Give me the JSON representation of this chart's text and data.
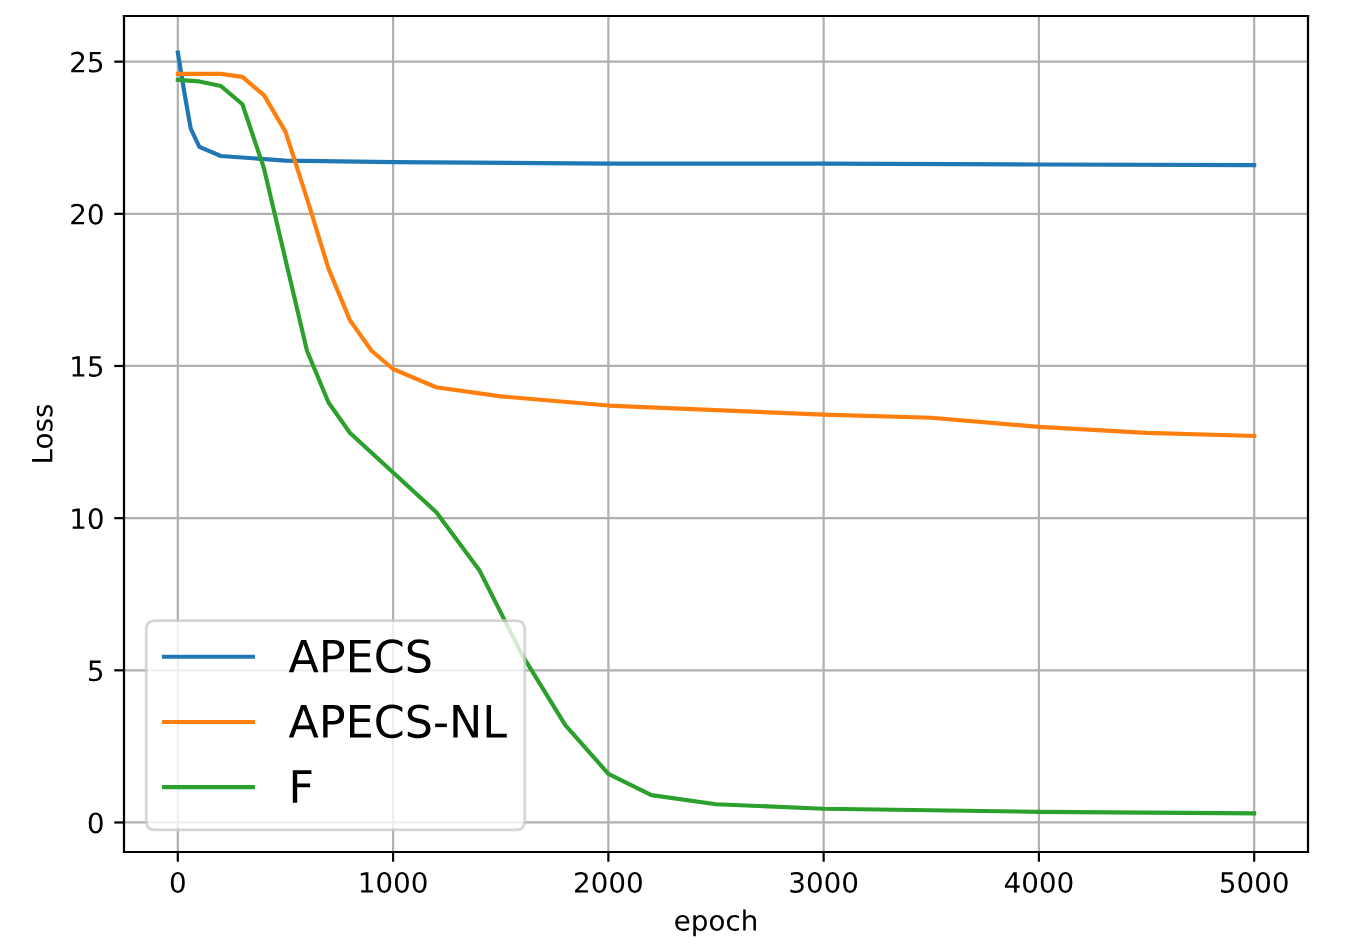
{
  "chart_data": {
    "type": "line",
    "xlabel": "epoch",
    "ylabel": "Loss",
    "xlim": [
      -250,
      5250
    ],
    "ylim": [
      -0.97,
      26.5
    ],
    "xticks": [
      0,
      1000,
      2000,
      3000,
      4000,
      5000
    ],
    "yticks": [
      0,
      5,
      10,
      15,
      20,
      25
    ],
    "grid": true,
    "legend": "bottom left",
    "series": [
      {
        "name": "APECS",
        "color": "#1f77b4",
        "x": [
          0,
          30,
          60,
          100,
          200,
          500,
          1000,
          2000,
          3000,
          4000,
          5000
        ],
        "values": [
          25.3,
          24.0,
          22.8,
          22.2,
          21.9,
          21.75,
          21.7,
          21.65,
          21.65,
          21.62,
          21.6
        ]
      },
      {
        "name": "APECS-NL",
        "color": "#ff7f0e",
        "x": [
          0,
          200,
          300,
          400,
          500,
          600,
          700,
          800,
          900,
          1000,
          1200,
          1500,
          2000,
          3000,
          3500,
          4000,
          4500,
          5000
        ],
        "values": [
          24.6,
          24.6,
          24.5,
          23.9,
          22.7,
          20.5,
          18.2,
          16.5,
          15.5,
          14.9,
          14.3,
          14.0,
          13.7,
          13.4,
          13.3,
          13.0,
          12.8,
          12.7
        ]
      },
      {
        "name": "F",
        "color": "#2ca02c",
        "x": [
          0,
          100,
          200,
          300,
          400,
          500,
          600,
          700,
          800,
          1000,
          1200,
          1400,
          1600,
          1800,
          2000,
          2200,
          2500,
          3000,
          4000,
          5000
        ],
        "values": [
          24.4,
          24.35,
          24.2,
          23.6,
          21.5,
          18.5,
          15.5,
          13.8,
          12.8,
          11.5,
          10.2,
          8.3,
          5.5,
          3.2,
          1.6,
          0.9,
          0.6,
          0.45,
          0.35,
          0.3
        ]
      }
    ]
  }
}
